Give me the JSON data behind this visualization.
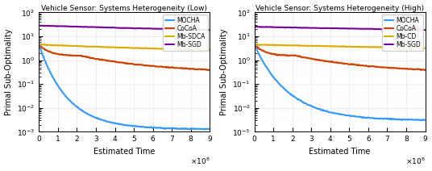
{
  "left_title": "Vehicle Sensor: Systems Heterogeneity (Low)",
  "right_title": "Vehicle Sensor: Systems Heterogeneity (High)",
  "xlabel": "Estimated Time",
  "ylabel": "Primal Sub-Optimality",
  "xlim": [
    0,
    900000000.0
  ],
  "ylim": [
    0.001,
    100.0
  ],
  "colors": {
    "MOCHA": "#3399ff",
    "CoCoA": "#cc4400",
    "Mb_SDCA": "#ddaa00",
    "Mb_SGD": "#770099",
    "Mb_CD": "#ddaa00"
  },
  "line_width": 1.5
}
